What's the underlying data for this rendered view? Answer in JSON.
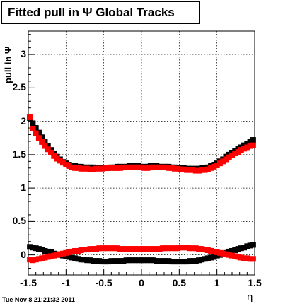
{
  "title": "Fitted pull in  Ψ   Global Tracks",
  "footer": "Tue Nov  8 21:21:32 2011",
  "chart_data": {
    "type": "scatter",
    "title": "Fitted pull in  Ψ   Global Tracks",
    "xlabel": "η",
    "ylabel": "pull in Ψ",
    "xlim": [
      -1.5,
      1.5
    ],
    "ylim": [
      -0.3,
      3.35
    ],
    "grid": true,
    "x_ticks": [
      -1.5,
      -1,
      -0.5,
      0,
      0.5,
      1,
      1.5
    ],
    "x_tick_labels": [
      "-1.5",
      "-1",
      "-0.5",
      "0",
      "0.5",
      "1",
      "1.5"
    ],
    "y_ticks": [
      0,
      0.5,
      1,
      1.5,
      2,
      2.5,
      3
    ],
    "y_tick_labels": [
      "0",
      "0.5",
      "1",
      "1.5",
      "2",
      "2.5",
      "3"
    ],
    "series": [
      {
        "color": "#000000",
        "x": [
          -1.48,
          -1.44,
          -1.4,
          -1.36,
          -1.32,
          -1.28,
          -1.24,
          -1.2,
          -1.16,
          -1.12,
          -1.08,
          -1.04,
          -1.0,
          -0.96,
          -0.92,
          -0.88,
          -0.84,
          -0.8,
          -0.76,
          -0.72,
          -0.68,
          -0.64,
          -0.6,
          -0.56,
          -0.52,
          -0.48,
          -0.44,
          -0.4,
          -0.36,
          -0.32,
          -0.28,
          -0.24,
          -0.2,
          -0.16,
          -0.12,
          -0.08,
          -0.04,
          0.0,
          0.04,
          0.08,
          0.12,
          0.16,
          0.2,
          0.24,
          0.28,
          0.32,
          0.36,
          0.4,
          0.44,
          0.48,
          0.52,
          0.56,
          0.6,
          0.64,
          0.68,
          0.72,
          0.76,
          0.8,
          0.84,
          0.88,
          0.92,
          0.96,
          1.0,
          1.04,
          1.08,
          1.12,
          1.16,
          1.2,
          1.24,
          1.28,
          1.32,
          1.36,
          1.4,
          1.44,
          1.48
        ],
        "values": [
          2.05,
          1.97,
          1.9,
          1.83,
          1.76,
          1.7,
          1.63,
          1.57,
          1.52,
          1.47,
          1.43,
          1.39,
          1.37,
          1.35,
          1.34,
          1.33,
          1.32,
          1.32,
          1.31,
          1.31,
          1.31,
          1.31,
          1.3,
          1.3,
          1.3,
          1.3,
          1.3,
          1.31,
          1.31,
          1.32,
          1.32,
          1.32,
          1.32,
          1.33,
          1.33,
          1.33,
          1.33,
          1.32,
          1.32,
          1.32,
          1.33,
          1.33,
          1.33,
          1.32,
          1.32,
          1.32,
          1.32,
          1.31,
          1.31,
          1.3,
          1.3,
          1.3,
          1.29,
          1.29,
          1.29,
          1.29,
          1.29,
          1.3,
          1.3,
          1.31,
          1.33,
          1.35,
          1.37,
          1.4,
          1.43,
          1.47,
          1.5,
          1.53,
          1.56,
          1.59,
          1.61,
          1.64,
          1.66,
          1.69,
          1.72
        ]
      },
      {
        "color": "#ff0000",
        "x": [
          -1.48,
          -1.44,
          -1.4,
          -1.36,
          -1.32,
          -1.28,
          -1.24,
          -1.2,
          -1.16,
          -1.12,
          -1.08,
          -1.04,
          -1.0,
          -0.96,
          -0.92,
          -0.88,
          -0.84,
          -0.8,
          -0.76,
          -0.72,
          -0.68,
          -0.64,
          -0.6,
          -0.56,
          -0.52,
          -0.48,
          -0.44,
          -0.4,
          -0.36,
          -0.32,
          -0.28,
          -0.24,
          -0.2,
          -0.16,
          -0.12,
          -0.08,
          -0.04,
          0.0,
          0.04,
          0.08,
          0.12,
          0.16,
          0.2,
          0.24,
          0.28,
          0.32,
          0.36,
          0.4,
          0.44,
          0.48,
          0.52,
          0.56,
          0.6,
          0.64,
          0.68,
          0.72,
          0.76,
          0.8,
          0.84,
          0.88,
          0.92,
          0.96,
          1.0,
          1.04,
          1.08,
          1.12,
          1.16,
          1.2,
          1.24,
          1.28,
          1.32,
          1.36,
          1.4,
          1.44,
          1.48
        ],
        "values": [
          2.06,
          1.89,
          1.82,
          1.75,
          1.69,
          1.63,
          1.58,
          1.53,
          1.48,
          1.44,
          1.41,
          1.38,
          1.35,
          1.33,
          1.31,
          1.3,
          1.3,
          1.29,
          1.29,
          1.29,
          1.28,
          1.28,
          1.29,
          1.29,
          1.29,
          1.3,
          1.3,
          1.3,
          1.3,
          1.3,
          1.3,
          1.31,
          1.31,
          1.31,
          1.31,
          1.31,
          1.31,
          1.31,
          1.3,
          1.3,
          1.31,
          1.31,
          1.31,
          1.31,
          1.31,
          1.31,
          1.3,
          1.3,
          1.29,
          1.29,
          1.28,
          1.28,
          1.27,
          1.27,
          1.27,
          1.26,
          1.26,
          1.27,
          1.27,
          1.28,
          1.3,
          1.32,
          1.34,
          1.37,
          1.4,
          1.43,
          1.46,
          1.49,
          1.52,
          1.54,
          1.57,
          1.59,
          1.61,
          1.63,
          1.64
        ]
      },
      {
        "color": "#000000",
        "x": [
          -1.48,
          -1.44,
          -1.4,
          -1.36,
          -1.32,
          -1.28,
          -1.24,
          -1.2,
          -1.16,
          -1.12,
          -1.08,
          -1.04,
          -1.0,
          -0.96,
          -0.92,
          -0.88,
          -0.84,
          -0.8,
          -0.76,
          -0.72,
          -0.68,
          -0.64,
          -0.6,
          -0.56,
          -0.52,
          -0.48,
          -0.44,
          -0.4,
          -0.36,
          -0.32,
          -0.28,
          -0.24,
          -0.2,
          -0.16,
          -0.12,
          -0.08,
          -0.04,
          0.0,
          0.04,
          0.08,
          0.12,
          0.16,
          0.2,
          0.24,
          0.28,
          0.32,
          0.36,
          0.4,
          0.44,
          0.48,
          0.52,
          0.56,
          0.6,
          0.64,
          0.68,
          0.72,
          0.76,
          0.8,
          0.84,
          0.88,
          0.92,
          0.96,
          1.0,
          1.04,
          1.08,
          1.12,
          1.16,
          1.2,
          1.24,
          1.28,
          1.32,
          1.36,
          1.4,
          1.44,
          1.48
        ],
        "values": [
          0.12,
          0.11,
          0.1,
          0.09,
          0.08,
          0.06,
          0.05,
          0.04,
          0.02,
          0.01,
          0.0,
          -0.01,
          -0.02,
          -0.03,
          -0.04,
          -0.05,
          -0.06,
          -0.07,
          -0.07,
          -0.08,
          -0.08,
          -0.09,
          -0.09,
          -0.09,
          -0.1,
          -0.1,
          -0.1,
          -0.09,
          -0.09,
          -0.09,
          -0.09,
          -0.09,
          -0.08,
          -0.08,
          -0.08,
          -0.08,
          -0.08,
          -0.08,
          -0.08,
          -0.08,
          -0.08,
          -0.08,
          -0.09,
          -0.09,
          -0.09,
          -0.09,
          -0.09,
          -0.1,
          -0.1,
          -0.1,
          -0.1,
          -0.1,
          -0.1,
          -0.09,
          -0.09,
          -0.09,
          -0.08,
          -0.07,
          -0.06,
          -0.05,
          -0.04,
          -0.03,
          -0.01,
          0.0,
          0.02,
          0.03,
          0.05,
          0.06,
          0.07,
          0.09,
          0.1,
          0.11,
          0.13,
          0.14,
          0.15
        ]
      },
      {
        "color": "#ff0000",
        "x": [
          -1.48,
          -1.44,
          -1.4,
          -1.36,
          -1.32,
          -1.28,
          -1.24,
          -1.2,
          -1.16,
          -1.12,
          -1.08,
          -1.04,
          -1.0,
          -0.96,
          -0.92,
          -0.88,
          -0.84,
          -0.8,
          -0.76,
          -0.72,
          -0.68,
          -0.64,
          -0.6,
          -0.56,
          -0.52,
          -0.48,
          -0.44,
          -0.4,
          -0.36,
          -0.32,
          -0.28,
          -0.24,
          -0.2,
          -0.16,
          -0.12,
          -0.08,
          -0.04,
          0.0,
          0.04,
          0.08,
          0.12,
          0.16,
          0.2,
          0.24,
          0.28,
          0.32,
          0.36,
          0.4,
          0.44,
          0.48,
          0.52,
          0.56,
          0.6,
          0.64,
          0.68,
          0.72,
          0.76,
          0.8,
          0.84,
          0.88,
          0.92,
          0.96,
          1.0,
          1.04,
          1.08,
          1.12,
          1.16,
          1.2,
          1.24,
          1.28,
          1.32,
          1.36,
          1.4,
          1.44,
          1.48
        ],
        "values": [
          -0.07,
          -0.08,
          -0.07,
          -0.06,
          -0.05,
          -0.04,
          -0.03,
          -0.02,
          -0.01,
          0.0,
          0.01,
          0.02,
          0.03,
          0.04,
          0.05,
          0.06,
          0.06,
          0.07,
          0.08,
          0.08,
          0.09,
          0.09,
          0.09,
          0.1,
          0.1,
          0.1,
          0.1,
          0.1,
          0.1,
          0.1,
          0.09,
          0.09,
          0.09,
          0.09,
          0.09,
          0.09,
          0.09,
          0.09,
          0.09,
          0.09,
          0.09,
          0.09,
          0.09,
          0.09,
          0.1,
          0.1,
          0.1,
          0.1,
          0.1,
          0.1,
          0.11,
          0.11,
          0.11,
          0.1,
          0.1,
          0.1,
          0.09,
          0.09,
          0.08,
          0.07,
          0.06,
          0.05,
          0.04,
          0.03,
          0.02,
          0.01,
          0.0,
          -0.01,
          -0.02,
          -0.03,
          -0.04,
          -0.05,
          -0.05,
          -0.06,
          -0.06
        ]
      }
    ]
  }
}
